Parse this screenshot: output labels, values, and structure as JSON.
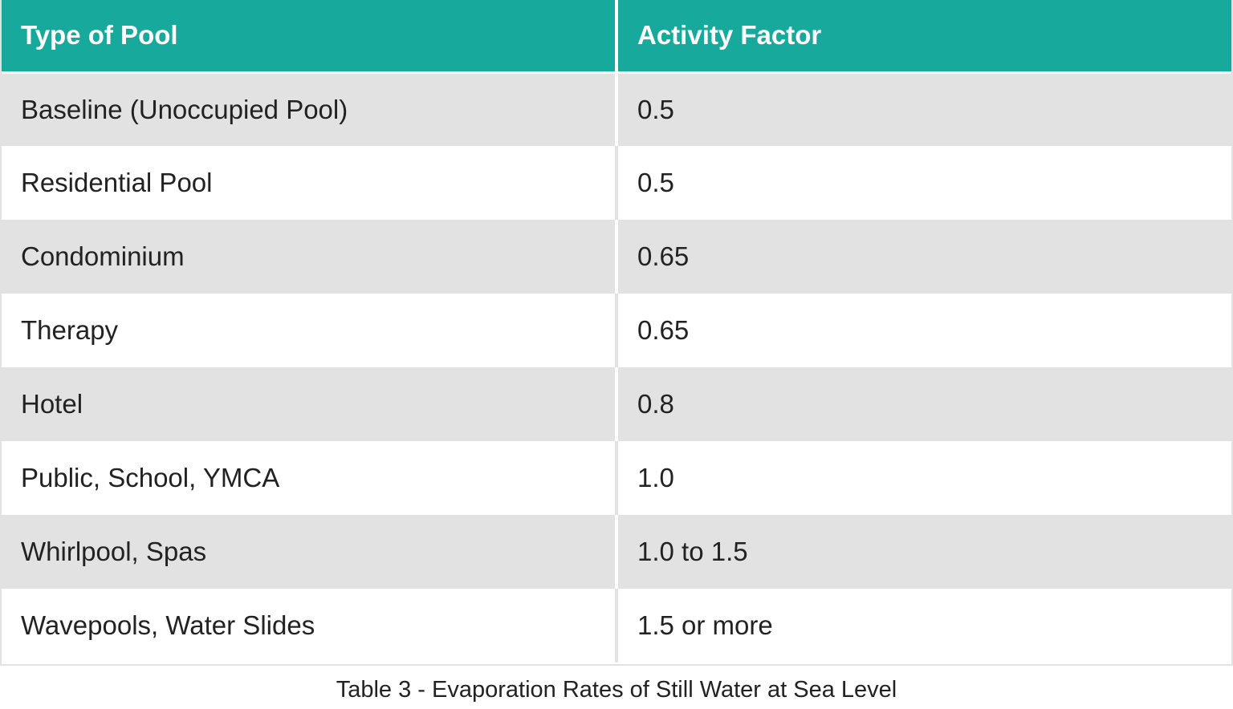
{
  "table": {
    "headers": [
      "Type of Pool",
      "Activity Factor"
    ],
    "rows": [
      {
        "type": "Baseline (Unoccupied Pool)",
        "factor": "0.5"
      },
      {
        "type": "Residential Pool",
        "factor": "0.5"
      },
      {
        "type": "Condominium",
        "factor": "0.65"
      },
      {
        "type": "Therapy",
        "factor": "0.65"
      },
      {
        "type": "Hotel",
        "factor": "0.8"
      },
      {
        "type": "Public, School, YMCA",
        "factor": "1.0"
      },
      {
        "type": "Whirlpool, Spas",
        "factor": "1.0 to 1.5"
      },
      {
        "type": "Wavepools, Water Slides",
        "factor": "1.5 or more"
      }
    ],
    "header_color": "#16a99c",
    "stripe_color": "#e2e2e2"
  },
  "caption": "Table 3 - Evaporation Rates of Still Water at Sea Level"
}
